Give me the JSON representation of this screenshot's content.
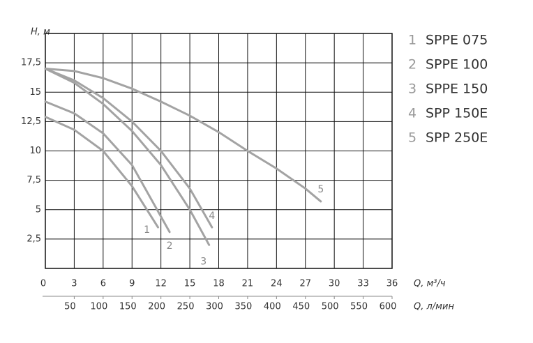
{
  "chart_data": {
    "type": "line",
    "ylabel": "H, м",
    "xlabel": "Q, м³/ч",
    "x2label": "Q, л/мин",
    "xlim": [
      0,
      36
    ],
    "xticks": [
      0,
      3,
      6,
      9,
      12,
      15,
      18,
      21,
      24,
      27,
      30,
      33,
      36
    ],
    "x2lim": [
      0,
      600
    ],
    "x2ticks": [
      50,
      100,
      150,
      200,
      250,
      300,
      350,
      400,
      450,
      500,
      550,
      600
    ],
    "ylim": [
      0,
      20
    ],
    "yticks": [
      {
        "value": 2.5,
        "label": "2,5"
      },
      5,
      {
        "value": 7.5,
        "label": "7,5"
      },
      10,
      {
        "value": 12.5,
        "label": "12,5"
      },
      15,
      {
        "value": 17.5,
        "label": "17,5"
      }
    ],
    "grid": true,
    "series": [
      {
        "label": "1",
        "name": "SPPE 075",
        "color": "#a3a3a3",
        "x": [
          0,
          3,
          6,
          9,
          11.7
        ],
        "values": [
          12.9,
          11.8,
          10,
          7,
          3.5
        ]
      },
      {
        "label": "2",
        "name": "SPPE 100",
        "color": "#a3a3a3",
        "x": [
          0,
          3,
          6,
          9,
          12.9
        ],
        "values": [
          14.2,
          13.2,
          11.5,
          8.8,
          3.1
        ]
      },
      {
        "label": "3",
        "name": "SPPE 150",
        "color": "#a3a3a3",
        "x": [
          0,
          3,
          6,
          9,
          12,
          15,
          17
        ],
        "values": [
          17,
          15.8,
          14,
          11.7,
          8.8,
          5,
          2
        ]
      },
      {
        "label": "4",
        "name": "SPP 150E",
        "color": "#a3a3a3",
        "x": [
          0,
          3,
          6,
          9,
          12,
          15,
          17.3
        ],
        "values": [
          17,
          16,
          14.5,
          12.5,
          10,
          6.8,
          3.5
        ]
      },
      {
        "label": "5",
        "name": "SPP 250E",
        "color": "#a3a3a3",
        "x": [
          0,
          3,
          6,
          9,
          12,
          15,
          18,
          21,
          24,
          27,
          28.6
        ],
        "values": [
          17,
          16.8,
          16.2,
          15.3,
          14.2,
          13,
          11.6,
          10,
          8.5,
          6.8,
          5.7
        ]
      }
    ]
  }
}
